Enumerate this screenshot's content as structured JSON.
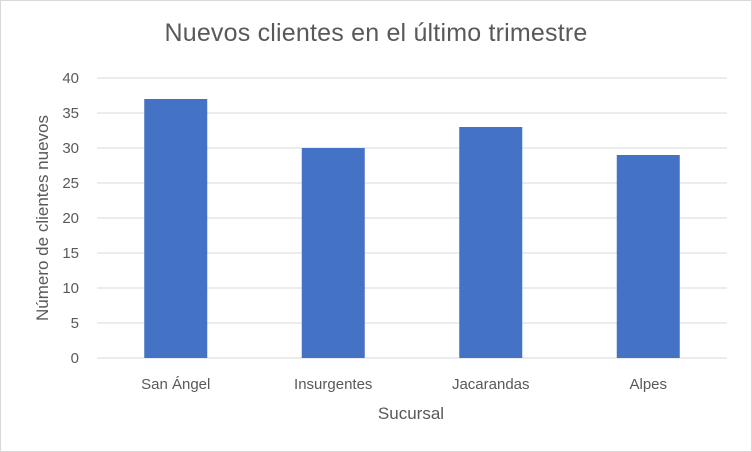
{
  "chart_data": {
    "type": "bar",
    "title": "Nuevos clientes en el último trimestre",
    "xlabel": "Sucursal",
    "ylabel": "Número de clientes nuevos",
    "categories": [
      "San Ángel",
      "Insurgentes",
      "Jacarandas",
      "Alpes"
    ],
    "values": [
      37,
      30,
      33,
      29
    ],
    "ylim": [
      0,
      40
    ],
    "yticks": [
      "0",
      "5",
      "10",
      "15",
      "20",
      "25",
      "30",
      "35",
      "40"
    ],
    "grid": true,
    "legend": "none",
    "bar_color": "#4472C4",
    "grid_color": "#d9d9d9",
    "text_color": "#595959"
  }
}
